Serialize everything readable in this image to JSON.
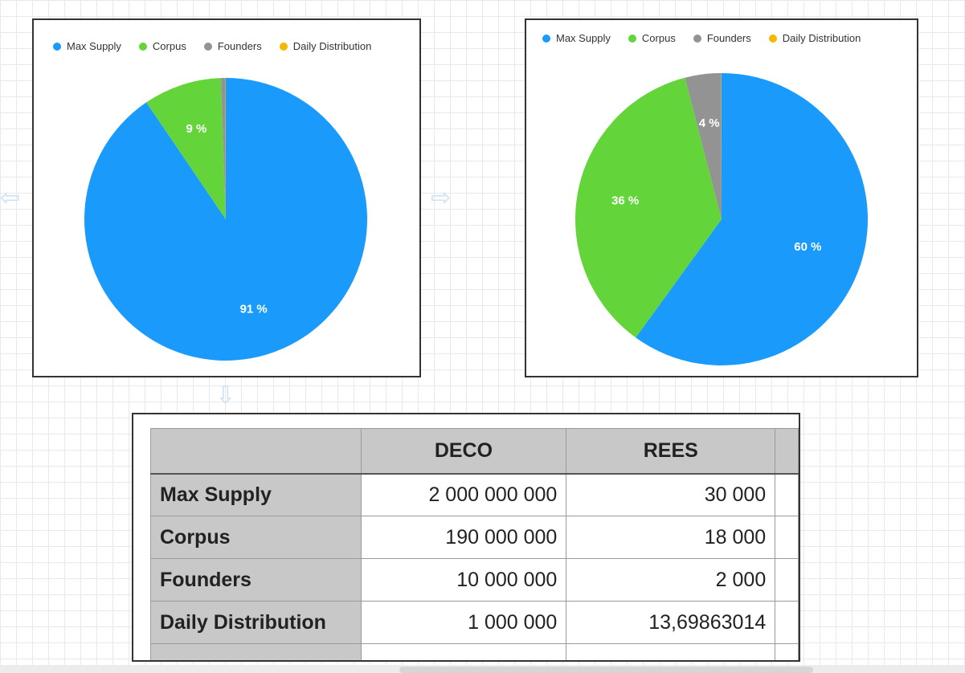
{
  "colors": {
    "max_supply": "#1a9bfc",
    "corpus": "#63d43a",
    "founders": "#939393",
    "daily_distribution": "#f5b800"
  },
  "chart_data": [
    {
      "type": "pie",
      "legend": [
        "Max Supply",
        "Corpus",
        "Founders",
        "Daily Distribution"
      ],
      "legend_position": "top",
      "values": [
        91,
        9,
        0.5,
        0.05
      ],
      "labels": [
        "91 %",
        "9 %",
        "",
        ""
      ]
    },
    {
      "type": "pie",
      "legend": [
        "Max Supply",
        "Corpus",
        "Founders",
        "Daily Distribution"
      ],
      "legend_position": "top",
      "values": [
        60,
        36,
        4,
        0.03
      ],
      "labels": [
        "60 %",
        "36 %",
        "4 %",
        ""
      ]
    }
  ],
  "table": {
    "columns": [
      "",
      "DECO",
      "REES"
    ],
    "rows": [
      {
        "label": "Max Supply",
        "deco": "2 000 000 000",
        "rees": "30 000"
      },
      {
        "label": "Corpus",
        "deco": "190 000 000",
        "rees": "18 000"
      },
      {
        "label": "Founders",
        "deco": "10 000 000",
        "rees": "2 000"
      },
      {
        "label": "Daily Distribution",
        "deco": "1 000 000",
        "rees": "13,69863014"
      }
    ]
  },
  "connectors": {
    "left_arrow": "⇦",
    "right_arrow": "⇨",
    "down_arrow": "⇩"
  }
}
